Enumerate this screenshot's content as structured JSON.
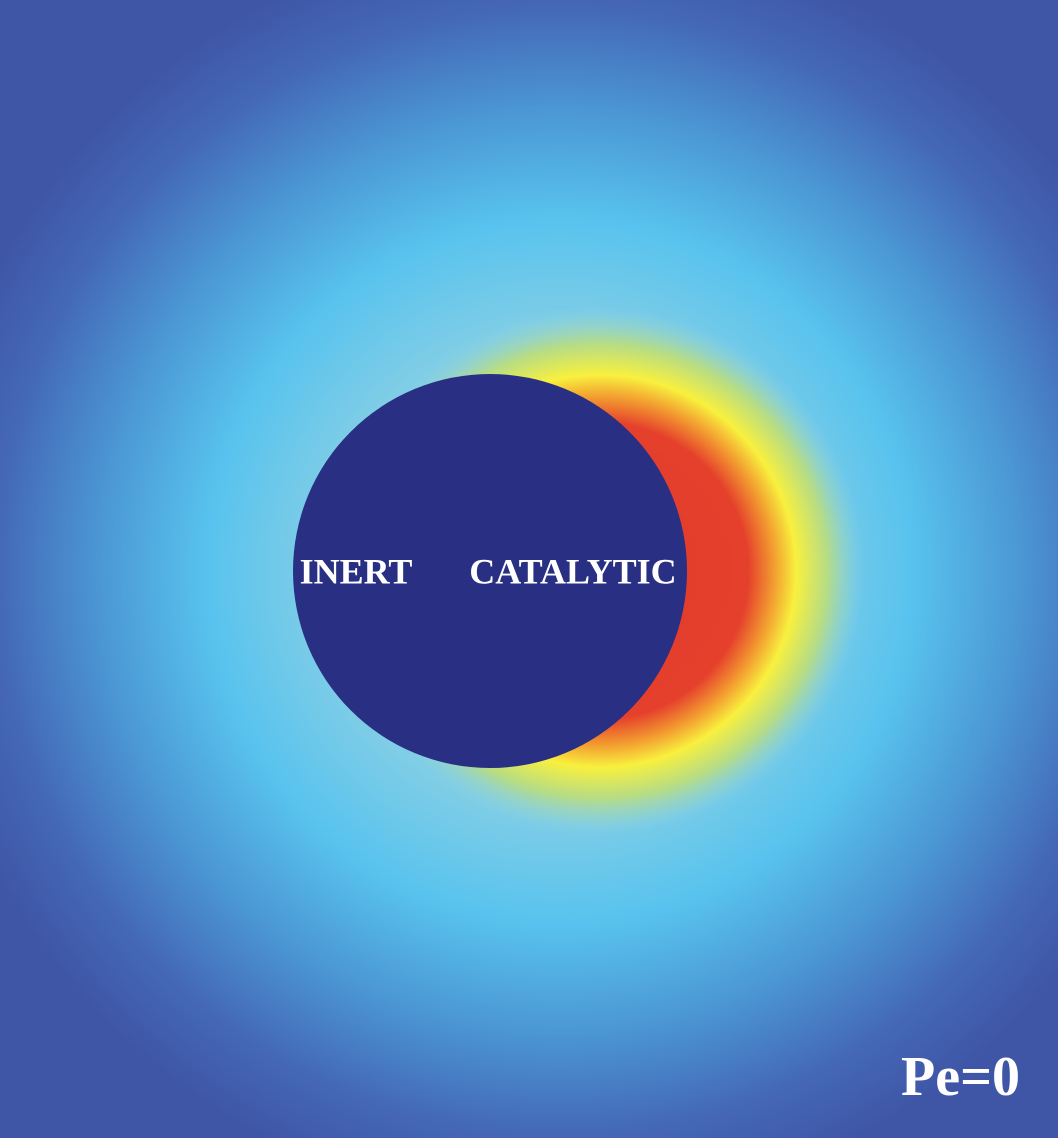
{
  "labels": {
    "left": "INERT",
    "right": "CATALYTIC",
    "peclet": "Pe=0"
  }
}
